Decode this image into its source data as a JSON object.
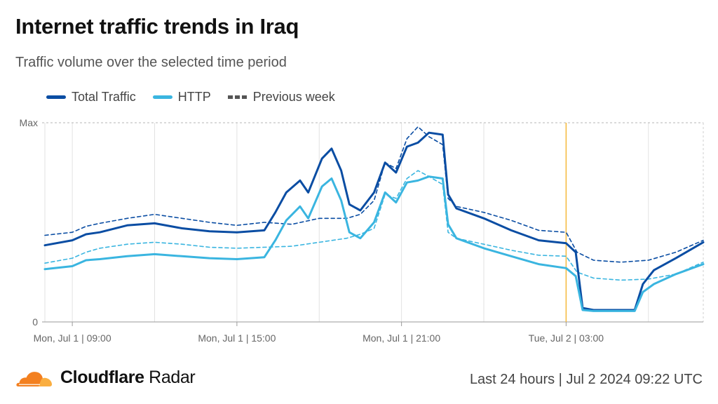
{
  "header": {
    "title": "Internet traffic trends in Iraq",
    "subtitle": "Traffic volume over the selected time period"
  },
  "legend": {
    "total": "Total Traffic",
    "http": "HTTP",
    "previous": "Previous week"
  },
  "colors": {
    "total": "#0a4da3",
    "http": "#3ab5e0",
    "marker": "#f6b93b",
    "grid": "#c8c8c8"
  },
  "footer": {
    "brand_bold": "Cloudflare",
    "brand_regular": " Radar",
    "range": "Last 24 hours | Jul 2 2024 09:22 UTC"
  },
  "chart_data": {
    "type": "line",
    "title": "Internet traffic trends in Iraq",
    "y_tick_labels": [
      "Max",
      "0"
    ],
    "ylim": [
      0,
      100
    ],
    "xlim": [
      0,
      24
    ],
    "x_ticks": [
      {
        "x": 1,
        "label": "Mon, Jul 1 | 09:00"
      },
      {
        "x": 7,
        "label": "Mon, Jul 1 | 15:00"
      },
      {
        "x": 13,
        "label": "Mon, Jul 1 | 21:00"
      },
      {
        "x": 19,
        "label": "Tue, Jul 2 | 03:00"
      }
    ],
    "minor_gridlines_x": [
      0,
      1,
      4,
      7,
      10,
      13,
      16,
      19,
      22
    ],
    "marker_x": 19,
    "series": [
      {
        "name": "Total Traffic",
        "style": "solid",
        "color": "#0a4da3",
        "points": [
          [
            0,
            38.5
          ],
          [
            1,
            41
          ],
          [
            1.5,
            44
          ],
          [
            2,
            45
          ],
          [
            3,
            48.5
          ],
          [
            4,
            49.5
          ],
          [
            5,
            47
          ],
          [
            6,
            45.5
          ],
          [
            7,
            45
          ],
          [
            8,
            46
          ],
          [
            8.4,
            55
          ],
          [
            8.8,
            65
          ],
          [
            9.3,
            71
          ],
          [
            9.6,
            65
          ],
          [
            10.1,
            82
          ],
          [
            10.45,
            87
          ],
          [
            10.8,
            76
          ],
          [
            11.1,
            59
          ],
          [
            11.5,
            56
          ],
          [
            12,
            65
          ],
          [
            12.4,
            80
          ],
          [
            12.8,
            75
          ],
          [
            13.2,
            88
          ],
          [
            13.6,
            90
          ],
          [
            14,
            95
          ],
          [
            14.5,
            94
          ],
          [
            14.7,
            64
          ],
          [
            15,
            57
          ],
          [
            16,
            52
          ],
          [
            17,
            46
          ],
          [
            18,
            41
          ],
          [
            19,
            39.5
          ],
          [
            19.35,
            35
          ],
          [
            19.6,
            7
          ],
          [
            20,
            6
          ],
          [
            20.5,
            6
          ],
          [
            21,
            6
          ],
          [
            21.5,
            6
          ],
          [
            21.8,
            19
          ],
          [
            22.2,
            26
          ],
          [
            23,
            32
          ],
          [
            24,
            40
          ]
        ]
      },
      {
        "name": "HTTP",
        "style": "solid",
        "color": "#3ab5e0",
        "points": [
          [
            0,
            26.5
          ],
          [
            1,
            28
          ],
          [
            1.5,
            31
          ],
          [
            2,
            31.5
          ],
          [
            3,
            33
          ],
          [
            4,
            34
          ],
          [
            5,
            33
          ],
          [
            6,
            32
          ],
          [
            7,
            31.5
          ],
          [
            8,
            32.5
          ],
          [
            8.4,
            41
          ],
          [
            8.8,
            51
          ],
          [
            9.3,
            58
          ],
          [
            9.6,
            52
          ],
          [
            10.1,
            68
          ],
          [
            10.45,
            72
          ],
          [
            10.8,
            61
          ],
          [
            11.1,
            45
          ],
          [
            11.5,
            42
          ],
          [
            12,
            50
          ],
          [
            12.4,
            65
          ],
          [
            12.8,
            60
          ],
          [
            13.2,
            70
          ],
          [
            13.6,
            71
          ],
          [
            14,
            73
          ],
          [
            14.5,
            72
          ],
          [
            14.7,
            49
          ],
          [
            15,
            42
          ],
          [
            16,
            37
          ],
          [
            17,
            33
          ],
          [
            18,
            29
          ],
          [
            19,
            27
          ],
          [
            19.35,
            23
          ],
          [
            19.6,
            6
          ],
          [
            20,
            5.5
          ],
          [
            20.5,
            5.5
          ],
          [
            21,
            5.5
          ],
          [
            21.5,
            5.5
          ],
          [
            21.8,
            15
          ],
          [
            22.2,
            19
          ],
          [
            23,
            24
          ],
          [
            24,
            29
          ]
        ]
      },
      {
        "name": "Previous week (Total)",
        "style": "dashed",
        "color": "#0a4da3",
        "points": [
          [
            0,
            43.5
          ],
          [
            1,
            45
          ],
          [
            1.5,
            48
          ],
          [
            2,
            49.5
          ],
          [
            3,
            52
          ],
          [
            4,
            54
          ],
          [
            5,
            52
          ],
          [
            6,
            50
          ],
          [
            7,
            48.5
          ],
          [
            8,
            50
          ],
          [
            9,
            49
          ],
          [
            10,
            52
          ],
          [
            11,
            52
          ],
          [
            11.5,
            54
          ],
          [
            12,
            61
          ],
          [
            12.4,
            80
          ],
          [
            12.8,
            77
          ],
          [
            13.2,
            92
          ],
          [
            13.6,
            98
          ],
          [
            14,
            93
          ],
          [
            14.5,
            89
          ],
          [
            14.7,
            62
          ],
          [
            15,
            58
          ],
          [
            16,
            55
          ],
          [
            17,
            51
          ],
          [
            18,
            46
          ],
          [
            19,
            45
          ],
          [
            19.4,
            35
          ],
          [
            20,
            31
          ],
          [
            21,
            30
          ],
          [
            22,
            31
          ],
          [
            23,
            35
          ],
          [
            24,
            41
          ]
        ]
      },
      {
        "name": "Previous week (HTTP)",
        "style": "dashed",
        "color": "#3ab5e0",
        "points": [
          [
            0,
            29.5
          ],
          [
            1,
            32
          ],
          [
            1.5,
            35
          ],
          [
            2,
            37
          ],
          [
            3,
            39
          ],
          [
            4,
            40
          ],
          [
            5,
            39
          ],
          [
            6,
            37.5
          ],
          [
            7,
            37
          ],
          [
            8,
            37.5
          ],
          [
            9,
            38
          ],
          [
            10,
            40
          ],
          [
            11,
            42
          ],
          [
            11.5,
            44
          ],
          [
            12,
            47
          ],
          [
            12.4,
            64
          ],
          [
            12.8,
            62
          ],
          [
            13.2,
            72
          ],
          [
            13.6,
            76
          ],
          [
            14,
            73
          ],
          [
            14.5,
            69
          ],
          [
            14.7,
            45
          ],
          [
            15,
            42
          ],
          [
            16,
            39
          ],
          [
            17,
            36
          ],
          [
            18,
            33.5
          ],
          [
            19,
            33
          ],
          [
            19.4,
            25
          ],
          [
            20,
            22
          ],
          [
            21,
            21
          ],
          [
            22,
            21.5
          ],
          [
            23,
            24
          ],
          [
            24,
            30
          ]
        ]
      }
    ]
  }
}
